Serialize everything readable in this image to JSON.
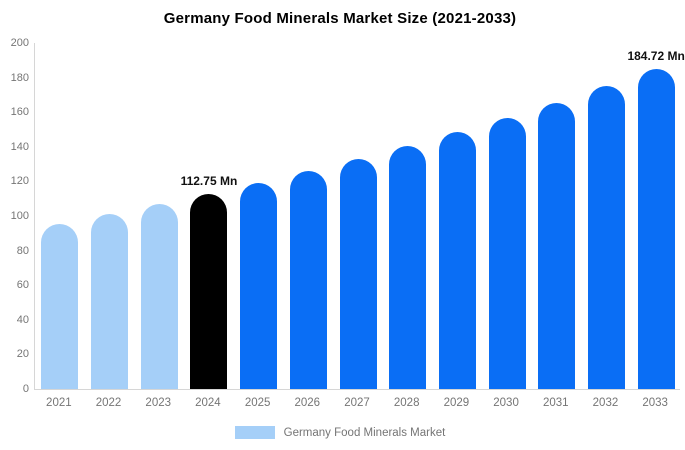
{
  "title": "Germany Food Minerals Market Size (2021-2033)",
  "legend": {
    "label": "Germany Food Minerals Market",
    "swatch_color": "#a5cff8"
  },
  "colors": {
    "historical_bar": "#a5cff8",
    "base_year_bar": "#000000",
    "forecast_bar": "#0a6ef5",
    "axis_line": "#d6d6d6",
    "tick_text": "#757575",
    "title_text": "#000000",
    "data_label_text": "#111111",
    "background": "#ffffff"
  },
  "chart_data": {
    "type": "bar",
    "title": "Germany Food Minerals Market Size (2021-2033)",
    "categories": [
      "2021",
      "2022",
      "2023",
      "2024",
      "2025",
      "2026",
      "2027",
      "2028",
      "2029",
      "2030",
      "2031",
      "2032",
      "2033"
    ],
    "values": [
      95.6,
      101.0,
      106.7,
      112.75,
      119.1,
      125.8,
      132.9,
      140.4,
      148.3,
      156.7,
      165.5,
      174.9,
      184.72
    ],
    "value_labels": [
      "",
      "",
      "",
      "112.75 Mn",
      "",
      "",
      "",
      "",
      "",
      "",
      "",
      "",
      "184.72 Mn"
    ],
    "bar_color_keys": [
      "historical_bar",
      "historical_bar",
      "historical_bar",
      "base_year_bar",
      "forecast_bar",
      "forecast_bar",
      "forecast_bar",
      "forecast_bar",
      "forecast_bar",
      "forecast_bar",
      "forecast_bar",
      "forecast_bar",
      "forecast_bar"
    ],
    "unit": "Mn",
    "xlabel": "",
    "ylabel": "",
    "ylim": [
      0,
      200
    ],
    "yticks": [
      0,
      20,
      40,
      60,
      80,
      100,
      120,
      140,
      160,
      180,
      200
    ],
    "grid": false,
    "legend_position": "bottom",
    "legend_entries": [
      "Germany Food Minerals Market"
    ]
  }
}
